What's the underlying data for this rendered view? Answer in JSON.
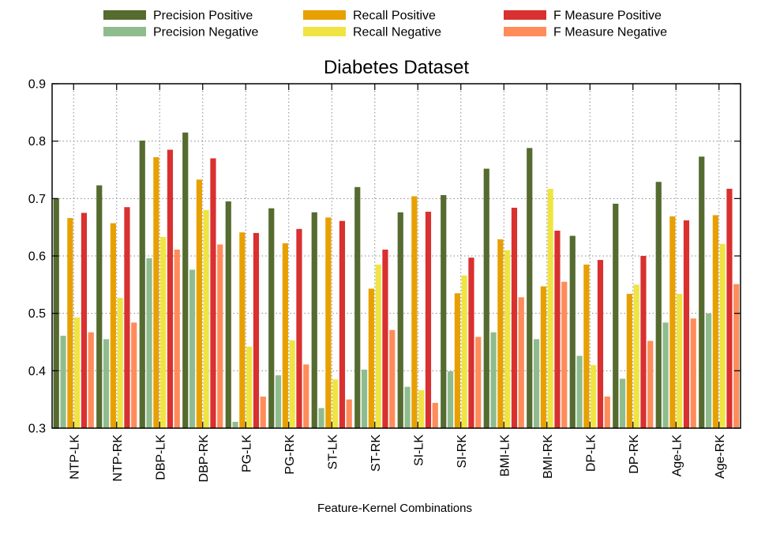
{
  "chart_data": {
    "type": "bar",
    "title": "Diabetes Dataset",
    "xlabel": "Feature-Kernel Combinations",
    "ylabel": "",
    "ylim": [
      0.3,
      0.9
    ],
    "yticks": [
      "0.3",
      "0.4",
      "0.5",
      "0.6",
      "0.7",
      "0.8",
      "0.9"
    ],
    "grid": true,
    "legend_position": "top",
    "categories": [
      "NTP-LK",
      "NTP-RK",
      "DBP-LK",
      "DBP-RK",
      "PG-LK",
      "PG-RK",
      "ST-LK",
      "ST-RK",
      "SI-LK",
      "SI-RK",
      "BMI-LK",
      "BMI-RK",
      "DP-LK",
      "DP-RK",
      "Age-LK",
      "Age-RK"
    ],
    "series": [
      {
        "name": "Precision Positive",
        "color": "#556b2f",
        "values": [
          0.7,
          0.723,
          0.801,
          0.815,
          0.695,
          0.683,
          0.676,
          0.72,
          0.676,
          0.706,
          0.752,
          0.788,
          0.635,
          0.691,
          0.729,
          0.773
        ]
      },
      {
        "name": "Precision Negative",
        "color": "#8fbc8f",
        "values": [
          0.461,
          0.455,
          0.596,
          0.576,
          0.311,
          0.392,
          0.335,
          0.402,
          0.372,
          0.399,
          0.467,
          0.455,
          0.426,
          0.386,
          0.484,
          0.5
        ]
      },
      {
        "name": "Recall Positive",
        "color": "#e8a000",
        "values": [
          0.666,
          0.657,
          0.772,
          0.733,
          0.641,
          0.622,
          0.667,
          0.543,
          0.704,
          0.535,
          0.629,
          0.547,
          0.585,
          0.534,
          0.669,
          0.671
        ]
      },
      {
        "name": "Recall Negative",
        "color": "#f0e442",
        "values": [
          0.493,
          0.527,
          0.633,
          0.68,
          0.442,
          0.453,
          0.385,
          0.585,
          0.366,
          0.566,
          0.61,
          0.717,
          0.41,
          0.55,
          0.534,
          0.621
        ]
      },
      {
        "name": "F Measure Positive",
        "color": "#d93030",
        "values": [
          0.675,
          0.685,
          0.785,
          0.77,
          0.64,
          0.647,
          0.661,
          0.611,
          0.677,
          0.597,
          0.684,
          0.644,
          0.593,
          0.6,
          0.662,
          0.717
        ]
      },
      {
        "name": "F Measure Negative",
        "color": "#ff8c5a",
        "values": [
          0.467,
          0.484,
          0.611,
          0.62,
          0.355,
          0.411,
          0.35,
          0.471,
          0.344,
          0.459,
          0.528,
          0.555,
          0.355,
          0.452,
          0.491,
          0.551
        ]
      }
    ]
  }
}
